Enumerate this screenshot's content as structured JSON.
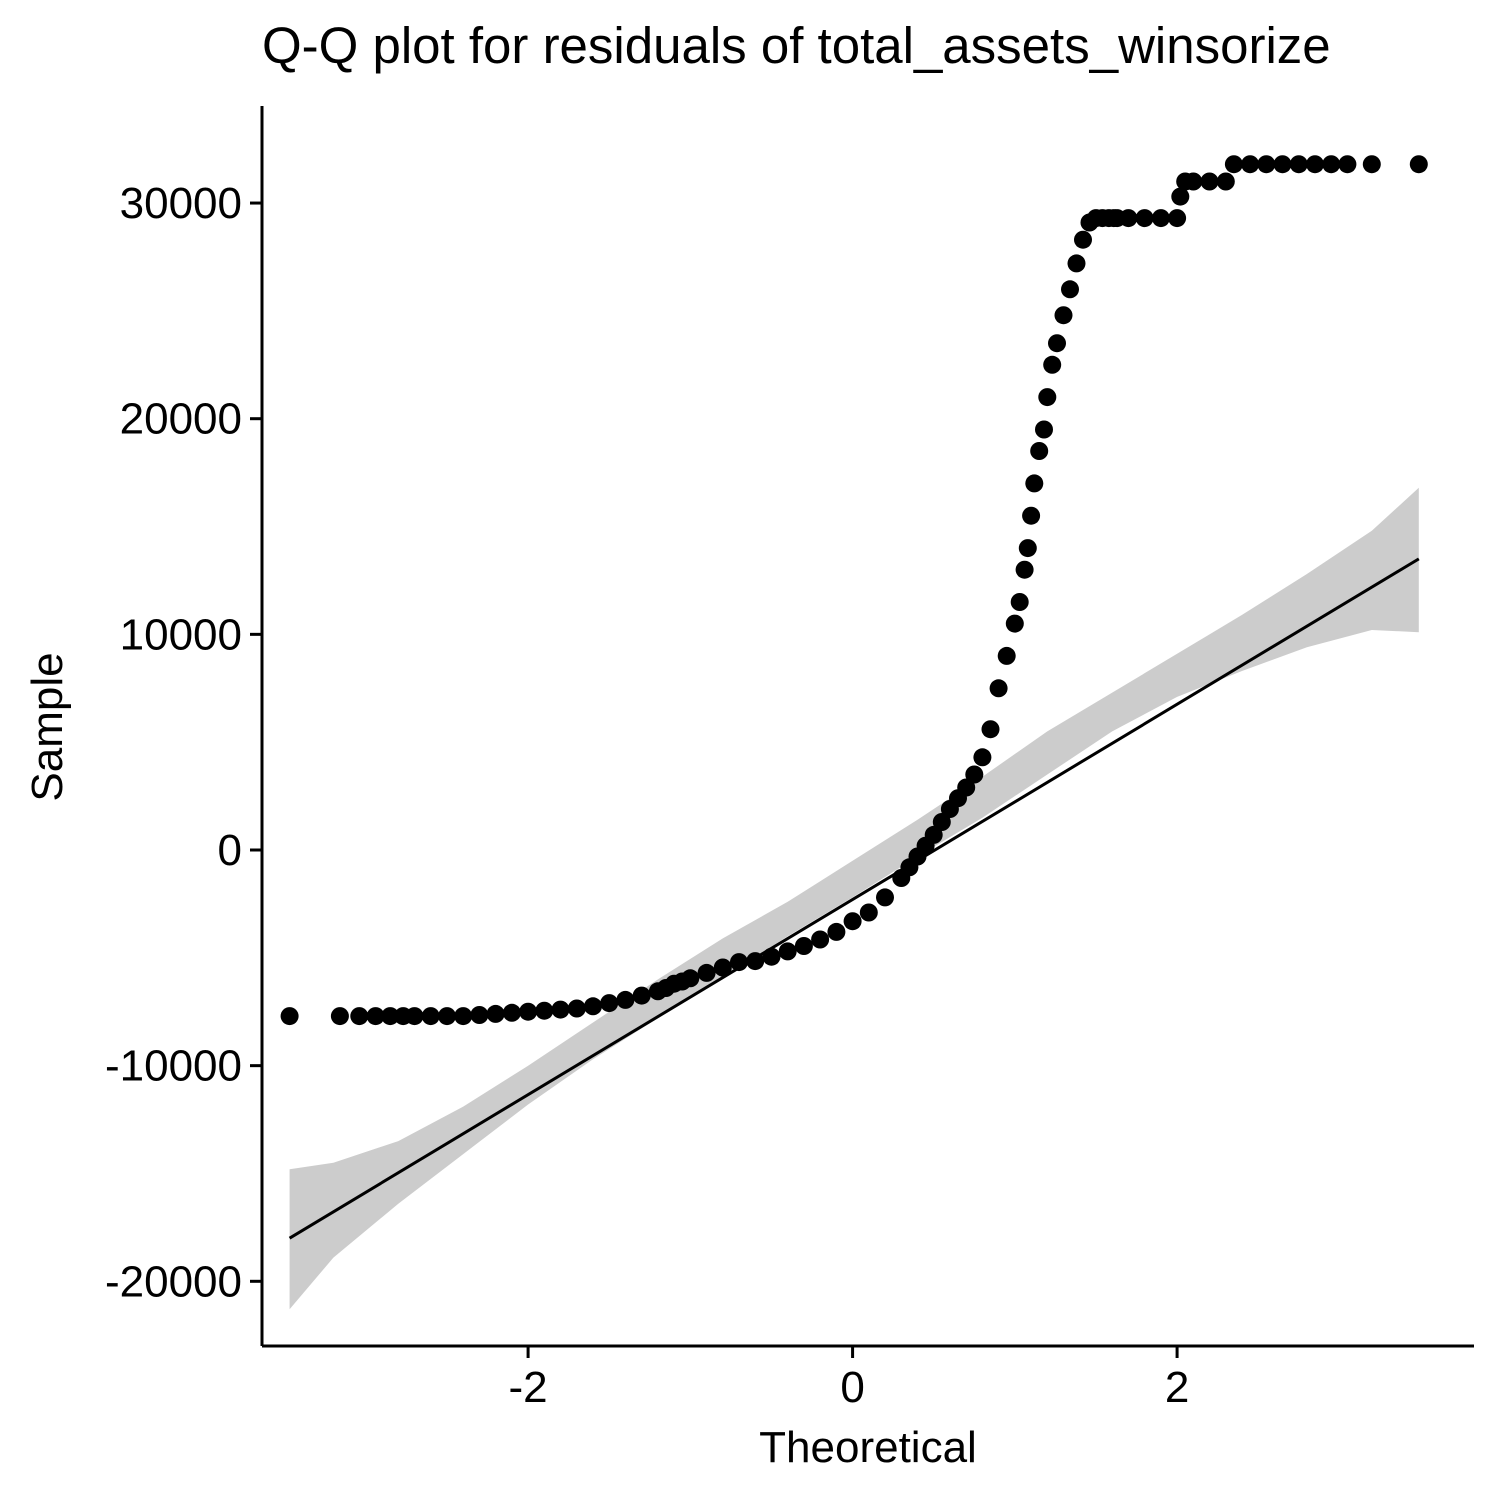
{
  "chart_data": {
    "type": "scatter",
    "title": "Q-Q plot for residuals of total_assets_winsorize",
    "xlabel": "Theoretical",
    "ylabel": "Sample",
    "xlim": [
      -3.64,
      3.83
    ],
    "ylim": [
      -23000,
      34500
    ],
    "grid": false,
    "legend": "none",
    "x_ticks": [
      -2,
      0,
      2
    ],
    "x_tick_labels": [
      "-2",
      "0",
      "2"
    ],
    "y_ticks": [
      -20000,
      -10000,
      0,
      10000,
      20000,
      30000
    ],
    "y_tick_labels": [
      "-20000",
      "-10000",
      "0",
      "10000",
      "20000",
      "30000"
    ],
    "reference_line": {
      "x": [
        -3.47,
        3.49
      ],
      "y": [
        -18000,
        13500
      ]
    },
    "confidence_band": {
      "x": [
        -3.47,
        -3.2,
        -2.8,
        -2.4,
        -2.0,
        -1.6,
        -1.2,
        -0.8,
        -0.4,
        0.0,
        0.4,
        0.8,
        1.2,
        1.6,
        2.0,
        2.4,
        2.8,
        3.2,
        3.49
      ],
      "upper": [
        -14800,
        -14500,
        -13500,
        -11900,
        -10000,
        -8000,
        -6000,
        -4100,
        -2400,
        -500,
        1400,
        3400,
        5500,
        7300,
        9100,
        10900,
        12800,
        14800,
        16800
      ],
      "lower": [
        -21300,
        -18900,
        -16400,
        -14100,
        -11800,
        -9700,
        -7800,
        -5900,
        -4000,
        -2200,
        -300,
        1500,
        3500,
        5500,
        7100,
        8300,
        9400,
        10200,
        10100
      ]
    },
    "points": {
      "x": [
        -3.47,
        -3.16,
        -3.04,
        -2.94,
        -2.85,
        -2.77,
        -2.7,
        -2.6,
        -2.5,
        -2.4,
        -2.3,
        -2.2,
        -2.1,
        -2.0,
        -1.9,
        -1.8,
        -1.7,
        -1.6,
        -1.5,
        -1.4,
        -1.3,
        -1.2,
        -1.15,
        -1.1,
        -1.05,
        -1.0,
        -0.9,
        -0.8,
        -0.7,
        -0.6,
        -0.5,
        -0.4,
        -0.3,
        -0.2,
        -0.1,
        0.0,
        0.1,
        0.2,
        0.3,
        0.35,
        0.4,
        0.45,
        0.5,
        0.55,
        0.6,
        0.65,
        0.7,
        0.75,
        0.8,
        0.85,
        0.9,
        0.95,
        1.0,
        1.03,
        1.06,
        1.08,
        1.1,
        1.12,
        1.15,
        1.18,
        1.2,
        1.23,
        1.26,
        1.3,
        1.34,
        1.38,
        1.42,
        1.46,
        1.5,
        1.54,
        1.58,
        1.61,
        1.63,
        1.7,
        1.8,
        1.9,
        2.0,
        2.02,
        2.05,
        2.1,
        2.2,
        2.3,
        2.35,
        2.45,
        2.55,
        2.65,
        2.75,
        2.85,
        2.95,
        3.05,
        3.2,
        3.49
      ],
      "y": [
        -7700,
        -7700,
        -7700,
        -7700,
        -7700,
        -7700,
        -7700,
        -7700,
        -7700,
        -7700,
        -7650,
        -7600,
        -7550,
        -7500,
        -7450,
        -7400,
        -7350,
        -7250,
        -7100,
        -6950,
        -6750,
        -6550,
        -6400,
        -6200,
        -6100,
        -5950,
        -5700,
        -5450,
        -5200,
        -5150,
        -4950,
        -4700,
        -4450,
        -4150,
        -3800,
        -3300,
        -2900,
        -2200,
        -1300,
        -800,
        -300,
        200,
        700,
        1300,
        1900,
        2400,
        2900,
        3500,
        4300,
        5600,
        7500,
        9000,
        10500,
        11500,
        13000,
        14000,
        15500,
        17000,
        18500,
        19500,
        21000,
        22500,
        23500,
        24800,
        26000,
        27200,
        28300,
        29100,
        29300,
        29300,
        29300,
        29300,
        29300,
        29300,
        29300,
        29300,
        29300,
        30300,
        31000,
        31000,
        31000,
        31000,
        31800,
        31800,
        31800,
        31800,
        31800,
        31800,
        31800,
        31800,
        31800,
        31800
      ]
    }
  }
}
